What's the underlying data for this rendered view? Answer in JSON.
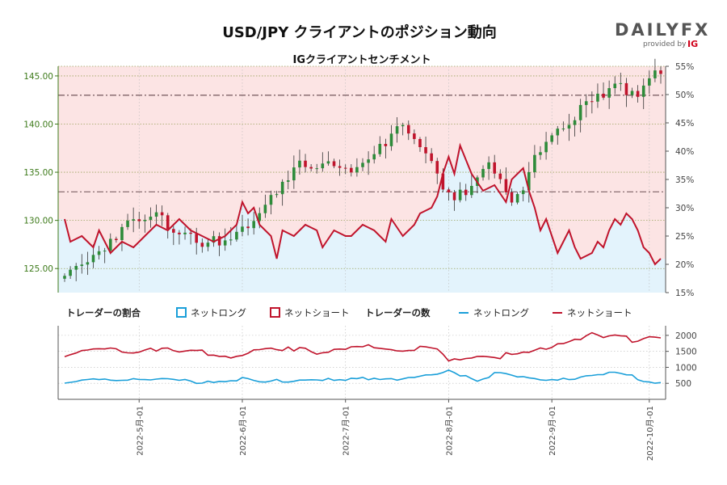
{
  "chart_data": {
    "type": "candlestick-sentiment",
    "title": "USD/JPY クライアントのポジション動向",
    "subtitle": "IGクライアントセンチメント",
    "brand": {
      "name": "DAILYFX",
      "x_highlight": "X",
      "sub": "provided by",
      "ig": "IG"
    },
    "price_axis": {
      "min": 122.5,
      "max": 146.0,
      "ticks": [
        "125.00",
        "130.00",
        "135.00",
        "140.00",
        "145.00"
      ],
      "tick_values": [
        125,
        130,
        135,
        140,
        145
      ]
    },
    "pct_axis": {
      "min": 15,
      "max": 55,
      "ticks": [
        "15%",
        "20%",
        "25%",
        "30%",
        "35%",
        "40%",
        "45%",
        "50%",
        "55%"
      ],
      "tick_values": [
        15,
        20,
        25,
        30,
        35,
        40,
        45,
        50,
        55
      ]
    },
    "count_axis": {
      "min": 0,
      "max": 2300,
      "ticks": [
        "500",
        "1000",
        "1500",
        "2000"
      ],
      "tick_values": [
        500,
        1000,
        1500,
        2000
      ]
    },
    "reference_lines": {
      "price": 143.0,
      "pct": 32.8
    },
    "x_labels": [
      "2022-5月-01",
      "2022-6月-01",
      "2022-7月-01",
      "2022-8月-01",
      "2022-9月-01",
      "2022-10月-01"
    ],
    "x_label_index": [
      13,
      31,
      49,
      67,
      85,
      102
    ],
    "n_periods": 105,
    "legend": {
      "ratio_title": "トレーダーの割合",
      "count_title": "トレーダーの数",
      "net_long": "ネットロング",
      "net_short": "ネットショート"
    },
    "colors": {
      "long": "#1a9fd9",
      "short": "#c0142c",
      "long_fill": "#e3f3fc",
      "short_fill": "#fce4e4",
      "up": "#2e8b3a",
      "down": "#c0142c"
    },
    "price_keypoints": [
      [
        0,
        124.0
      ],
      [
        5,
        126.5
      ],
      [
        9,
        128.8
      ],
      [
        13,
        129.8
      ],
      [
        16,
        130.4
      ],
      [
        19,
        129.6
      ],
      [
        22,
        128.8
      ],
      [
        25,
        127.6
      ],
      [
        28,
        127.2
      ],
      [
        31,
        128.6
      ],
      [
        33,
        130.7
      ],
      [
        35,
        131.9
      ],
      [
        38,
        134.3
      ],
      [
        41,
        135.6
      ],
      [
        44,
        135.2
      ],
      [
        47,
        136.2
      ],
      [
        50,
        135.6
      ],
      [
        53,
        136.7
      ],
      [
        56,
        137.6
      ],
      [
        58,
        139.3
      ],
      [
        61,
        138.4
      ],
      [
        64,
        136.3
      ],
      [
        66,
        133.8
      ],
      [
        68,
        132.3
      ],
      [
        70,
        132.6
      ],
      [
        72,
        134.0
      ],
      [
        74,
        135.2
      ],
      [
        76,
        133.8
      ],
      [
        78,
        132.4
      ],
      [
        80,
        134.0
      ],
      [
        82,
        137.0
      ],
      [
        85,
        138.3
      ],
      [
        88,
        139.5
      ],
      [
        91,
        142.0
      ],
      [
        93,
        143.4
      ],
      [
        95,
        143.8
      ],
      [
        97,
        144.6
      ],
      [
        99,
        143.0
      ],
      [
        100,
        142.8
      ],
      [
        102,
        144.6
      ],
      [
        104,
        144.9
      ]
    ],
    "short_pct_keypoints": [
      [
        0,
        28
      ],
      [
        1,
        24
      ],
      [
        3,
        25
      ],
      [
        5,
        23
      ],
      [
        6,
        26
      ],
      [
        8,
        22
      ],
      [
        10,
        24
      ],
      [
        12,
        23
      ],
      [
        14,
        25
      ],
      [
        16,
        27
      ],
      [
        18,
        26
      ],
      [
        20,
        28
      ],
      [
        22,
        26
      ],
      [
        24,
        25
      ],
      [
        26,
        24
      ],
      [
        28,
        25
      ],
      [
        30,
        27
      ],
      [
        31,
        31
      ],
      [
        32,
        29
      ],
      [
        33,
        30
      ],
      [
        34,
        27
      ],
      [
        36,
        25
      ],
      [
        37,
        21
      ],
      [
        38,
        26
      ],
      [
        40,
        25
      ],
      [
        42,
        27
      ],
      [
        44,
        26
      ],
      [
        45,
        23
      ],
      [
        47,
        26
      ],
      [
        49,
        25
      ],
      [
        50,
        25
      ],
      [
        52,
        27
      ],
      [
        54,
        26
      ],
      [
        56,
        24
      ],
      [
        57,
        28
      ],
      [
        59,
        25
      ],
      [
        60,
        26
      ],
      [
        61,
        27
      ],
      [
        62,
        29
      ],
      [
        64,
        30
      ],
      [
        65,
        32
      ],
      [
        66,
        36
      ],
      [
        67,
        39
      ],
      [
        68,
        36
      ],
      [
        69,
        41
      ],
      [
        71,
        36
      ],
      [
        73,
        33
      ],
      [
        75,
        34
      ],
      [
        77,
        31
      ],
      [
        78,
        35
      ],
      [
        80,
        37
      ],
      [
        81,
        33
      ],
      [
        82,
        30
      ],
      [
        83,
        26
      ],
      [
        84,
        28
      ],
      [
        85,
        25
      ],
      [
        86,
        22
      ],
      [
        87,
        24
      ],
      [
        88,
        26
      ],
      [
        89,
        23
      ],
      [
        90,
        21
      ],
      [
        92,
        22
      ],
      [
        93,
        24
      ],
      [
        94,
        23
      ],
      [
        95,
        26
      ],
      [
        96,
        28
      ],
      [
        97,
        27
      ],
      [
        98,
        29
      ],
      [
        99,
        28
      ],
      [
        100,
        26
      ],
      [
        101,
        23
      ],
      [
        102,
        22
      ],
      [
        103,
        20
      ],
      [
        104,
        21
      ]
    ],
    "long_count_keypoints": [
      [
        0,
        520
      ],
      [
        4,
        560
      ],
      [
        8,
        600
      ],
      [
        12,
        660
      ],
      [
        16,
        600
      ],
      [
        20,
        580
      ],
      [
        24,
        560
      ],
      [
        28,
        600
      ],
      [
        31,
        620
      ],
      [
        34,
        500
      ],
      [
        37,
        560
      ],
      [
        40,
        600
      ],
      [
        44,
        620
      ],
      [
        48,
        560
      ],
      [
        52,
        650
      ],
      [
        56,
        700
      ],
      [
        60,
        620
      ],
      [
        64,
        720
      ],
      [
        67,
        880
      ],
      [
        70,
        760
      ],
      [
        72,
        620
      ],
      [
        76,
        820
      ],
      [
        80,
        650
      ],
      [
        84,
        600
      ],
      [
        88,
        680
      ],
      [
        92,
        700
      ],
      [
        96,
        820
      ],
      [
        99,
        780
      ],
      [
        101,
        560
      ],
      [
        104,
        540
      ]
    ],
    "short_count_keypoints": [
      [
        0,
        1400
      ],
      [
        3,
        1480
      ],
      [
        6,
        1560
      ],
      [
        9,
        1570
      ],
      [
        12,
        1520
      ],
      [
        15,
        1600
      ],
      [
        18,
        1540
      ],
      [
        21,
        1450
      ],
      [
        24,
        1480
      ],
      [
        27,
        1420
      ],
      [
        30,
        1360
      ],
      [
        33,
        1480
      ],
      [
        36,
        1600
      ],
      [
        38,
        1500
      ],
      [
        41,
        1650
      ],
      [
        44,
        1500
      ],
      [
        47,
        1480
      ],
      [
        50,
        1600
      ],
      [
        53,
        1650
      ],
      [
        56,
        1580
      ],
      [
        59,
        1560
      ],
      [
        62,
        1620
      ],
      [
        65,
        1500
      ],
      [
        67,
        1180
      ],
      [
        69,
        1300
      ],
      [
        72,
        1360
      ],
      [
        75,
        1320
      ],
      [
        78,
        1400
      ],
      [
        81,
        1450
      ],
      [
        84,
        1650
      ],
      [
        87,
        1800
      ],
      [
        90,
        1950
      ],
      [
        92,
        2050
      ],
      [
        94,
        1900
      ],
      [
        96,
        1980
      ],
      [
        98,
        1900
      ],
      [
        100,
        1850
      ],
      [
        102,
        1980
      ],
      [
        104,
        2000
      ]
    ]
  }
}
